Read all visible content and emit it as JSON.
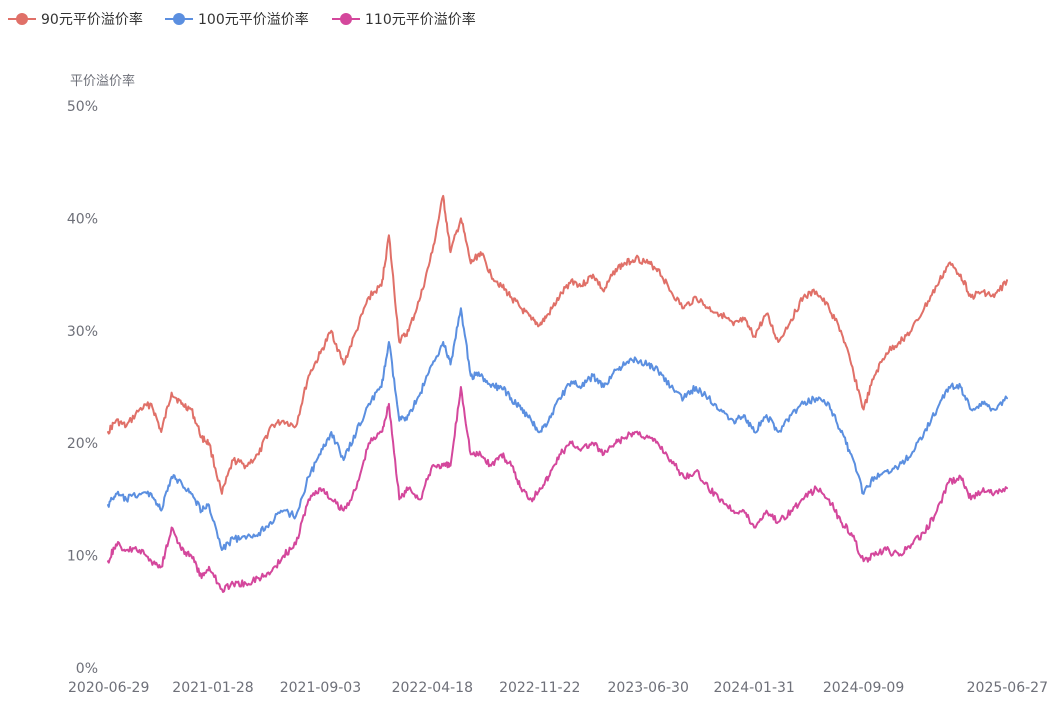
{
  "chart_data": {
    "type": "line",
    "ylabel": "平价溢价率",
    "ylim": [
      0,
      50
    ],
    "y_ticks": [
      "0%",
      "10%",
      "20%",
      "30%",
      "40%",
      "50%"
    ],
    "y_tick_values": [
      0,
      10,
      20,
      30,
      40,
      50
    ],
    "x_range": [
      "2020-06-29",
      "2025-06-27"
    ],
    "x_ticks": [
      "2020-06-29",
      "2021-01-28",
      "2021-09-03",
      "2022-04-18",
      "2022-11-22",
      "2023-06-30",
      "2024-01-31",
      "2024-09-09",
      "2025-06-27"
    ],
    "grid": false,
    "legend_position": "top-left",
    "series": [
      {
        "name": "90元平价溢价率",
        "color": "#e07068",
        "x": [
          "2020-06-29",
          "2020-07-15",
          "2020-08-05",
          "2020-09-01",
          "2020-09-25",
          "2020-10-15",
          "2020-11-05",
          "2020-11-25",
          "2020-12-15",
          "2021-01-05",
          "2021-01-20",
          "2021-02-15",
          "2021-03-10",
          "2021-04-05",
          "2021-05-01",
          "2021-05-25",
          "2021-06-20",
          "2021-07-15",
          "2021-08-10",
          "2021-09-03",
          "2021-09-25",
          "2021-10-20",
          "2021-11-15",
          "2021-12-10",
          "2022-01-05",
          "2022-01-20",
          "2022-02-10",
          "2022-03-01",
          "2022-03-25",
          "2022-04-18",
          "2022-05-10",
          "2022-05-25",
          "2022-06-15",
          "2022-07-05",
          "2022-07-25",
          "2022-08-15",
          "2022-09-05",
          "2022-09-25",
          "2022-10-15",
          "2022-11-05",
          "2022-11-22",
          "2022-12-10",
          "2023-01-01",
          "2023-01-25",
          "2023-02-15",
          "2023-03-10",
          "2023-04-01",
          "2023-04-25",
          "2023-05-15",
          "2023-06-05",
          "2023-06-30",
          "2023-07-20",
          "2023-08-15",
          "2023-09-10",
          "2023-10-05",
          "2023-10-30",
          "2023-11-25",
          "2023-12-20",
          "2024-01-10",
          "2024-01-31",
          "2024-02-25",
          "2024-03-20",
          "2024-04-15",
          "2024-05-10",
          "2024-06-05",
          "2024-07-01",
          "2024-07-25",
          "2024-08-15",
          "2024-09-09",
          "2024-10-01",
          "2024-10-25",
          "2024-11-20",
          "2024-12-15",
          "2025-01-10",
          "2025-02-05",
          "2025-03-01",
          "2025-03-25",
          "2025-04-15",
          "2025-05-10",
          "2025-06-01",
          "2025-06-27"
        ],
        "values": [
          21,
          22,
          21.5,
          23,
          23.5,
          21,
          24.5,
          23.5,
          23,
          20.5,
          20,
          15.5,
          18.5,
          18,
          19,
          21.5,
          22,
          21.5,
          26,
          28,
          30,
          27,
          30,
          33,
          34,
          38.5,
          29,
          30,
          33,
          37,
          42,
          37,
          40,
          36,
          37,
          35,
          34,
          33,
          32,
          31,
          30.5,
          31.5,
          33,
          34.5,
          34,
          35,
          33.5,
          35.5,
          36,
          36.5,
          36,
          35.5,
          33.5,
          32,
          33,
          32,
          31.5,
          30.5,
          31,
          29.5,
          31.5,
          29,
          31,
          33,
          33.5,
          32,
          30,
          27,
          23,
          26,
          28,
          29,
          30,
          32,
          34,
          36,
          35,
          33,
          33.5,
          33,
          34.5
        ]
      },
      {
        "name": "100元平价溢价率",
        "color": "#5b8fe0",
        "x": [
          "2020-06-29",
          "2020-07-15",
          "2020-08-05",
          "2020-09-01",
          "2020-09-25",
          "2020-10-15",
          "2020-11-05",
          "2020-11-25",
          "2020-12-15",
          "2021-01-05",
          "2021-01-20",
          "2021-02-15",
          "2021-03-10",
          "2021-04-05",
          "2021-05-01",
          "2021-05-25",
          "2021-06-20",
          "2021-07-15",
          "2021-08-10",
          "2021-09-03",
          "2021-09-25",
          "2021-10-20",
          "2021-11-15",
          "2021-12-10",
          "2022-01-05",
          "2022-01-20",
          "2022-02-10",
          "2022-03-01",
          "2022-03-25",
          "2022-04-18",
          "2022-05-10",
          "2022-05-25",
          "2022-06-15",
          "2022-07-05",
          "2022-07-25",
          "2022-08-15",
          "2022-09-05",
          "2022-09-25",
          "2022-10-15",
          "2022-11-05",
          "2022-11-22",
          "2022-12-10",
          "2023-01-01",
          "2023-01-25",
          "2023-02-15",
          "2023-03-10",
          "2023-04-01",
          "2023-04-25",
          "2023-05-15",
          "2023-06-05",
          "2023-06-30",
          "2023-07-20",
          "2023-08-15",
          "2023-09-10",
          "2023-10-05",
          "2023-10-30",
          "2023-11-25",
          "2023-12-20",
          "2024-01-10",
          "2024-01-31",
          "2024-02-25",
          "2024-03-20",
          "2024-04-15",
          "2024-05-10",
          "2024-06-05",
          "2024-07-01",
          "2024-07-25",
          "2024-08-15",
          "2024-09-09",
          "2024-10-01",
          "2024-10-25",
          "2024-11-20",
          "2024-12-15",
          "2025-01-10",
          "2025-02-05",
          "2025-03-01",
          "2025-03-25",
          "2025-04-15",
          "2025-05-10",
          "2025-06-01",
          "2025-06-27"
        ],
        "values": [
          14.5,
          15.5,
          15,
          15.5,
          15.5,
          14,
          17,
          16.5,
          15.5,
          14,
          14.5,
          10.5,
          11.5,
          11.5,
          12,
          13,
          14,
          13.5,
          17,
          19,
          21,
          18.5,
          21,
          23.5,
          25,
          29,
          22,
          22.5,
          24.5,
          27,
          29,
          27,
          32,
          26,
          26,
          25,
          25,
          24,
          23,
          22,
          21,
          22,
          24,
          25.5,
          25,
          26,
          25,
          26.5,
          27,
          27.5,
          27,
          26.5,
          25,
          24,
          25,
          24,
          23,
          22,
          22.5,
          21,
          22.5,
          21,
          22.5,
          23.5,
          24,
          23.5,
          21,
          19,
          15.5,
          17,
          17.5,
          18,
          19,
          21,
          23,
          25,
          25,
          23,
          23.5,
          23,
          24
        ]
      },
      {
        "name": "110元平价溢价率",
        "color": "#d4479c",
        "x": [
          "2020-06-29",
          "2020-07-15",
          "2020-08-05",
          "2020-09-01",
          "2020-09-25",
          "2020-10-15",
          "2020-11-05",
          "2020-11-25",
          "2020-12-15",
          "2021-01-05",
          "2021-01-20",
          "2021-02-15",
          "2021-03-10",
          "2021-04-05",
          "2021-05-01",
          "2021-05-25",
          "2021-06-20",
          "2021-07-15",
          "2021-08-10",
          "2021-09-03",
          "2021-09-25",
          "2021-10-20",
          "2021-11-15",
          "2021-12-10",
          "2022-01-05",
          "2022-01-20",
          "2022-02-10",
          "2022-03-01",
          "2022-03-25",
          "2022-04-18",
          "2022-05-10",
          "2022-05-25",
          "2022-06-15",
          "2022-07-05",
          "2022-07-25",
          "2022-08-15",
          "2022-09-05",
          "2022-09-25",
          "2022-10-15",
          "2022-11-05",
          "2022-11-22",
          "2022-12-10",
          "2023-01-01",
          "2023-01-25",
          "2023-02-15",
          "2023-03-10",
          "2023-04-01",
          "2023-04-25",
          "2023-05-15",
          "2023-06-05",
          "2023-06-30",
          "2023-07-20",
          "2023-08-15",
          "2023-09-10",
          "2023-10-05",
          "2023-10-30",
          "2023-11-25",
          "2023-12-20",
          "2024-01-10",
          "2024-01-31",
          "2024-02-25",
          "2024-03-20",
          "2024-04-15",
          "2024-05-10",
          "2024-06-05",
          "2024-07-01",
          "2024-07-25",
          "2024-08-15",
          "2024-09-09",
          "2024-10-01",
          "2024-10-25",
          "2024-11-20",
          "2024-12-15",
          "2025-01-10",
          "2025-02-05",
          "2025-03-01",
          "2025-03-25",
          "2025-04-15",
          "2025-05-10",
          "2025-06-01",
          "2025-06-27"
        ],
        "values": [
          9.5,
          11,
          10.5,
          10.5,
          9.5,
          9,
          12.5,
          10.5,
          10,
          8,
          9,
          7,
          7.5,
          7.5,
          8,
          8.5,
          10,
          11,
          15,
          16,
          15,
          14,
          16,
          20,
          21,
          23.5,
          15,
          16,
          15,
          18,
          18,
          18,
          25,
          19,
          19,
          18,
          19,
          18,
          16,
          15,
          16,
          17,
          19,
          20,
          19.5,
          20,
          19,
          20,
          20.5,
          21,
          20.5,
          20,
          18.5,
          17,
          17.5,
          16,
          15,
          14,
          14,
          12.5,
          14,
          13,
          14,
          15,
          16,
          15,
          13,
          12,
          9.5,
          10,
          10.5,
          10,
          11,
          12,
          14,
          16.5,
          17,
          15,
          16,
          15.5,
          16
        ]
      }
    ]
  }
}
